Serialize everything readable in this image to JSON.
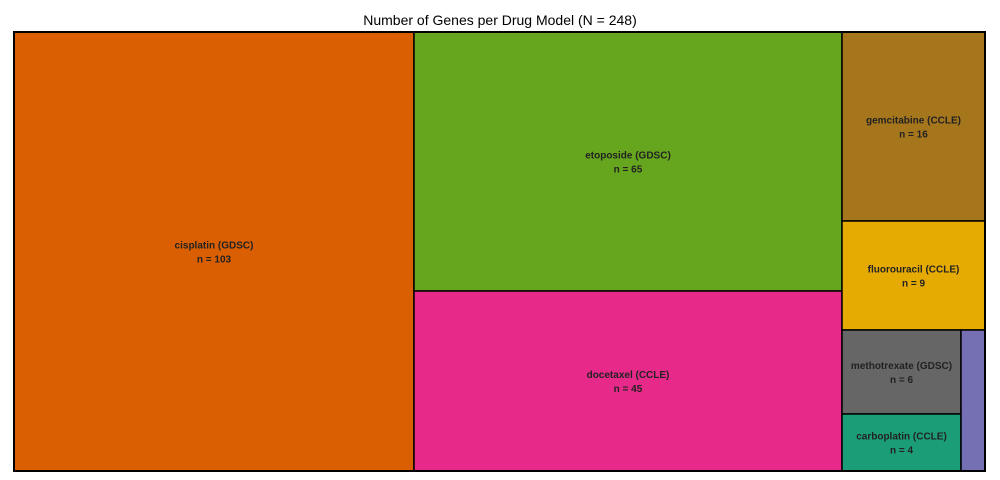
{
  "chart_data": {
    "type": "treemap",
    "title": "Number of Genes per Drug Model (N = 248)",
    "total": 248,
    "label_prefix": "n = ",
    "items": [
      {
        "name": "cisplatin (GDSC)",
        "value": 103,
        "color": "#d95f02",
        "label_name": "cisplatin (GDSC)",
        "label_value": "n = 103"
      },
      {
        "name": "etoposide (GDSC)",
        "value": 65,
        "color": "#66a61e",
        "label_name": "etoposide (GDSC)",
        "label_value": "n = 65"
      },
      {
        "name": "docetaxel (CCLE)",
        "value": 45,
        "color": "#e7298a",
        "label_name": "docetaxel (CCLE)",
        "label_value": "n = 45"
      },
      {
        "name": "gemcitabine (CCLE)",
        "value": 16,
        "color": "#a6761d",
        "label_name": "gemcitabine (CCLE)",
        "label_value": "n = 16"
      },
      {
        "name": "fluorouracil (CCLE)",
        "value": 9,
        "color": "#e6ab02",
        "label_name": "fluorouracil (CCLE)",
        "label_value": "n = 9"
      },
      {
        "name": "methotrexate (GDSC)",
        "value": 6,
        "color": "#666666",
        "label_name": "methotrexate (GDSC)",
        "label_value": "n = 6"
      },
      {
        "name": "carboplatin (CCLE)",
        "value": 4,
        "color": "#1b9e77",
        "label_name": "carboplatin (CCLE)",
        "label_value": "n = 4"
      },
      {
        "name": "",
        "value": 0,
        "color": "#7570b3",
        "label_name": "",
        "label_value": ""
      }
    ]
  }
}
